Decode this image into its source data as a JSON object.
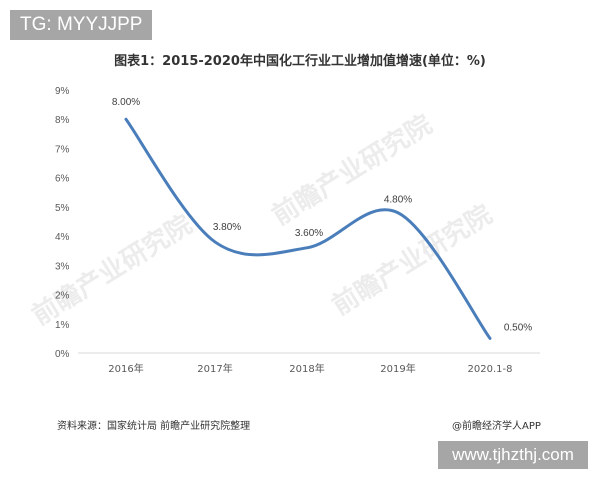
{
  "overlay": {
    "top_badge": "TG: MYYJJPP",
    "bottom_badge": "www.tjhzthj.com"
  },
  "header": {
    "title": "图表1：2015-2020年中国化工行业工业增加值增速(单位：%)"
  },
  "footer": {
    "source": "资料来源：国家统计局 前瞻产业研究院整理",
    "credit": "@前瞻经济学人APP"
  },
  "watermark": {
    "text": "前瞻产业研究院"
  },
  "colors": {
    "line": "#4a7ebb",
    "axis": "#d9d9d9",
    "badge_bg": "#a6a6a6"
  },
  "chart_data": {
    "type": "line",
    "title": "图表1：2015-2020年中国化工行业工业增加值增速(单位：%)",
    "xlabel": "",
    "ylabel": "",
    "categories": [
      "2016年",
      "2017年",
      "2018年",
      "2019年",
      "2020.1-8"
    ],
    "series": [
      {
        "name": "化工行业工业增加值增速",
        "values": [
          8.0,
          3.8,
          3.6,
          4.8,
          0.5
        ],
        "labels": [
          "8.00%",
          "3.80%",
          "3.60%",
          "4.80%",
          "0.50%"
        ]
      }
    ],
    "yticks": [
      "0%",
      "1%",
      "2%",
      "3%",
      "4%",
      "5%",
      "6%",
      "7%",
      "8%",
      "9%"
    ],
    "ylim": [
      0,
      9
    ],
    "grid": false,
    "legend": "none",
    "smooth": true
  }
}
